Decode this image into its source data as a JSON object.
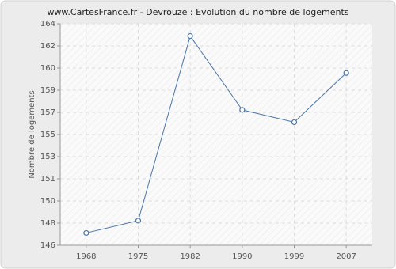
{
  "chart_data": {
    "type": "line",
    "title": "www.CartesFrance.fr - Devrouze : Evolution du nombre de logements",
    "y_label": "Nombre de logements",
    "categories": [
      "1968",
      "1975",
      "1982",
      "1990",
      "1999",
      "2007"
    ],
    "series": [
      {
        "name": "Nombre de logements",
        "color": "#4a76a8",
        "values": [
          147,
          148,
          163,
          157,
          156,
          160
        ]
      }
    ],
    "ylim": [
      146,
      164
    ],
    "yticks": [
      146,
      {
        "value": 147.8,
        "label": "148"
      },
      {
        "value": 149.6,
        "label": "150"
      },
      {
        "value": 151.4,
        "label": "151"
      },
      {
        "value": 153.2,
        "label": "153"
      },
      155,
      {
        "value": 156.8,
        "label": "157"
      },
      {
        "value": 158.6,
        "label": "159"
      },
      {
        "value": 160.4,
        "label": "160"
      },
      {
        "value": 162.2,
        "label": "162"
      },
      164
    ],
    "grid": true
  }
}
